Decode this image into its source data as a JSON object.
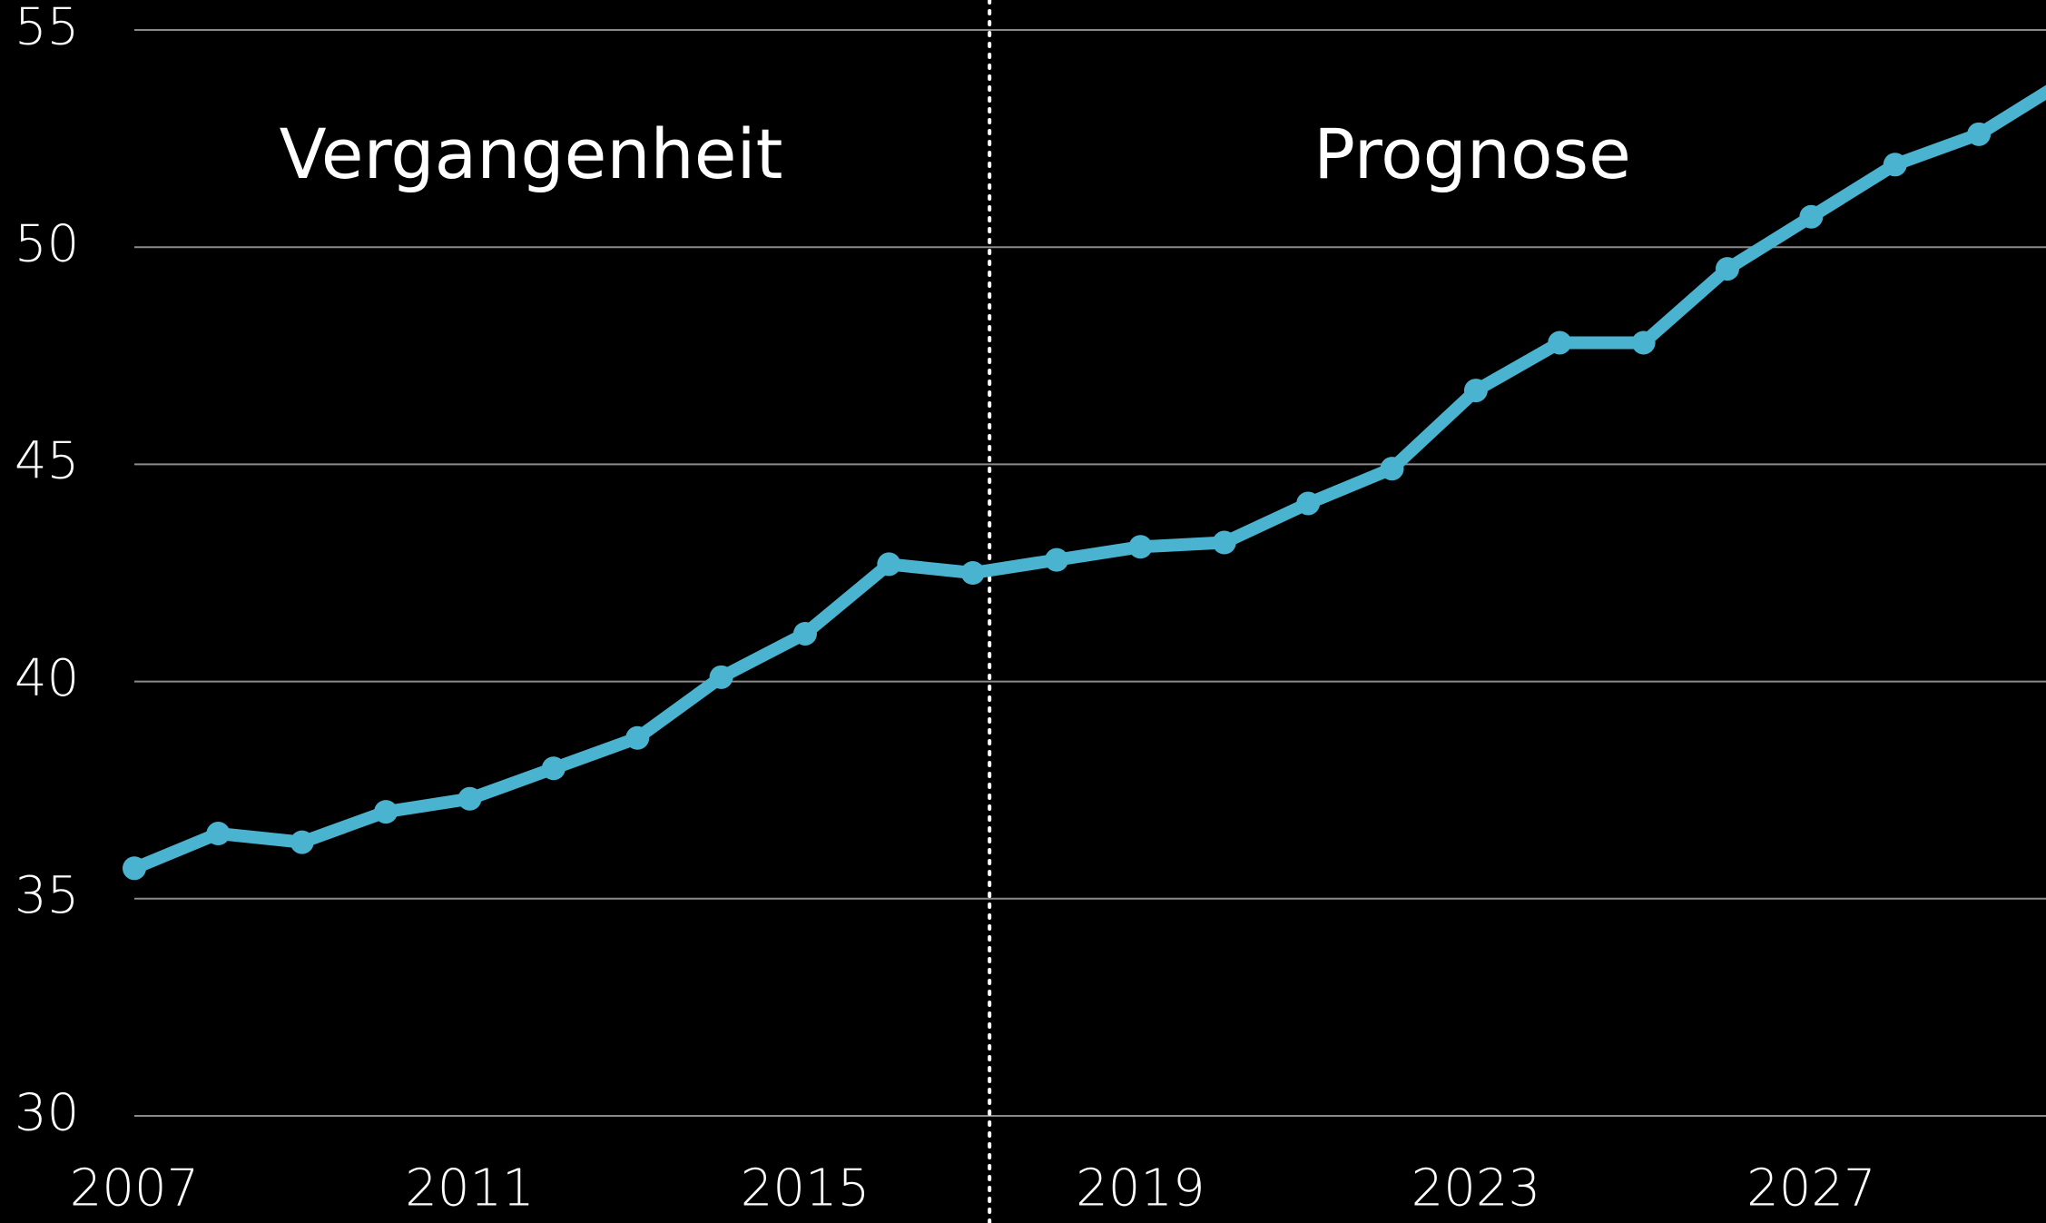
{
  "chart_data": {
    "type": "line",
    "annotations": [
      "Vergangenheit",
      "Prognose"
    ],
    "x": [
      2007,
      2008,
      2009,
      2010,
      2011,
      2012,
      2013,
      2014,
      2015,
      2016,
      2017,
      2018,
      2019,
      2020,
      2021,
      2022,
      2023,
      2024,
      2025,
      2026,
      2027,
      2028,
      2029,
      2030
    ],
    "series": [
      {
        "color": "#4ab3d0",
        "values": [
          35.7,
          36.5,
          36.3,
          37.0,
          37.3,
          38.0,
          38.7,
          40.1,
          41.1,
          42.7,
          42.5,
          42.8,
          43.1,
          43.2,
          44.1,
          44.9,
          46.7,
          47.8,
          47.8,
          49.5,
          50.7,
          51.9,
          52.6,
          53.8
        ]
      }
    ],
    "xlim": [
      2007,
      2029.8
    ],
    "xticks": [
      2007,
      2011,
      2015,
      2019,
      2023,
      2027
    ],
    "ylim": [
      30,
      55
    ],
    "yticks": [
      30,
      35,
      40,
      45,
      50,
      55
    ],
    "divider_x": 2017.2,
    "grid": true
  }
}
